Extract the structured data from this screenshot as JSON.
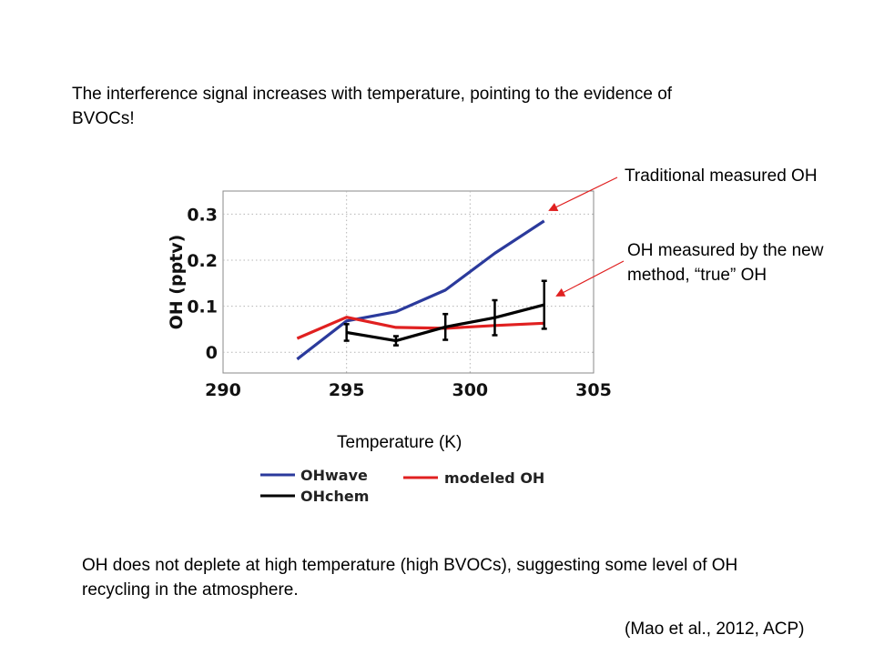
{
  "slide": {
    "intro": "The interference signal increases with temperature, pointing to the evidence of BVOCs!",
    "callout_traditional": "Traditional measured OH",
    "callout_new_line1": "OH measured by the new",
    "callout_new_line2": "method, “true” OH",
    "conclusion": "OH does not deplete at high temperature (high BVOCs), suggesting some level of OH recycling in the atmosphere.",
    "citation": "(Mao et al., 2012, ACP)"
  },
  "chart_data": {
    "type": "line",
    "xlabel": "Temperature (K)",
    "ylabel": "OH (pptv)",
    "xlim": [
      290,
      305
    ],
    "ylim": [
      -0.045,
      0.35
    ],
    "xticks": [
      290,
      295,
      300,
      305
    ],
    "yticks": [
      0,
      0.1,
      0.2,
      0.3
    ],
    "ytick_labels": [
      "0",
      "0.1",
      "0.2",
      "0.3"
    ],
    "grid": true,
    "legend_position": "below",
    "series": [
      {
        "name": "OHwave",
        "color": "#2b3a9c",
        "x": [
          293,
          295,
          297,
          299,
          301,
          303
        ],
        "y": [
          -0.015,
          0.068,
          0.088,
          0.135,
          0.215,
          0.285
        ]
      },
      {
        "name": "modeled OH",
        "color": "#e02020",
        "x": [
          293,
          295,
          297,
          299,
          301,
          303
        ],
        "y": [
          0.03,
          0.076,
          0.054,
          0.052,
          0.058,
          0.063
        ]
      },
      {
        "name": "OHchem",
        "color": "#000000",
        "x": [
          295,
          297,
          299,
          301,
          303
        ],
        "y": [
          0.043,
          0.025,
          0.055,
          0.075,
          0.103
        ],
        "err": [
          0.018,
          0.01,
          0.028,
          0.038,
          0.052
        ]
      }
    ],
    "legend_order": [
      "OHwave",
      "modeled OH",
      "OHchem"
    ]
  }
}
